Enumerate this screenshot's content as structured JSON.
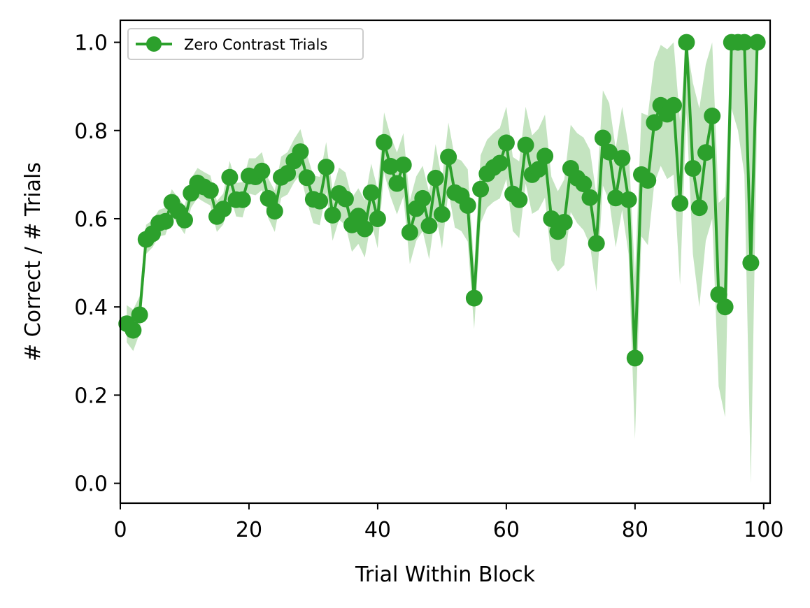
{
  "chart_data": {
    "type": "line",
    "title": "",
    "xlabel": "Trial Within Block",
    "ylabel": "# Correct / # Trials",
    "xlim": [
      0,
      101
    ],
    "ylim": [
      -0.045,
      1.05
    ],
    "x_ticks": [
      0,
      20,
      40,
      60,
      80,
      100
    ],
    "y_ticks": [
      0.0,
      0.2,
      0.4,
      0.6,
      0.8,
      1.0
    ],
    "x_tick_labels": [
      "0",
      "20",
      "40",
      "60",
      "80",
      "100"
    ],
    "y_tick_labels": [
      "0.0",
      "0.2",
      "0.4",
      "0.6",
      "0.8",
      "1.0"
    ],
    "grid": false,
    "legend_position": "top-left",
    "series": [
      {
        "name": "Zero Contrast Trials",
        "color": "#2ca02c",
        "band_color": "#c4e4c0",
        "marker": "circle",
        "x": [
          1,
          2,
          3,
          4,
          5,
          6,
          7,
          8,
          9,
          10,
          11,
          12,
          13,
          14,
          15,
          16,
          17,
          18,
          19,
          20,
          21,
          22,
          23,
          24,
          25,
          26,
          27,
          28,
          29,
          30,
          31,
          32,
          33,
          34,
          35,
          36,
          37,
          38,
          39,
          40,
          41,
          42,
          43,
          44,
          45,
          46,
          47,
          48,
          49,
          50,
          51,
          52,
          53,
          54,
          55,
          56,
          57,
          58,
          59,
          60,
          61,
          62,
          63,
          64,
          65,
          66,
          67,
          68,
          69,
          70,
          71,
          72,
          73,
          74,
          75,
          76,
          77,
          78,
          79,
          80,
          81,
          82,
          83,
          84,
          85,
          86,
          87,
          88,
          89,
          90,
          91,
          92,
          93,
          94,
          95,
          96,
          97,
          98,
          99
        ],
        "y": [
          0.362,
          0.347,
          0.382,
          0.553,
          0.566,
          0.59,
          0.594,
          0.637,
          0.617,
          0.597,
          0.658,
          0.681,
          0.672,
          0.664,
          0.605,
          0.622,
          0.694,
          0.643,
          0.643,
          0.697,
          0.695,
          0.708,
          0.646,
          0.617,
          0.694,
          0.703,
          0.731,
          0.752,
          0.693,
          0.644,
          0.64,
          0.717,
          0.608,
          0.657,
          0.645,
          0.586,
          0.606,
          0.577,
          0.659,
          0.6,
          0.773,
          0.719,
          0.68,
          0.722,
          0.569,
          0.623,
          0.646,
          0.584,
          0.692,
          0.61,
          0.74,
          0.659,
          0.652,
          0.63,
          0.42,
          0.667,
          0.702,
          0.716,
          0.726,
          0.772,
          0.656,
          0.643,
          0.767,
          0.7,
          0.712,
          0.742,
          0.6,
          0.571,
          0.592,
          0.714,
          0.692,
          0.679,
          0.648,
          0.544,
          0.783,
          0.751,
          0.647,
          0.737,
          0.643,
          0.284,
          0.7,
          0.687,
          0.818,
          0.857,
          0.837,
          0.857,
          0.635,
          1.0,
          0.714,
          0.625,
          0.75,
          0.833,
          0.428,
          0.4,
          1.0,
          1.0,
          1.0,
          0.5,
          1.0
        ],
        "lower": [
          0.32,
          0.3,
          0.34,
          0.52,
          0.535,
          0.56,
          0.563,
          0.607,
          0.587,
          0.565,
          0.625,
          0.647,
          0.638,
          0.63,
          0.57,
          0.587,
          0.657,
          0.605,
          0.603,
          0.657,
          0.653,
          0.665,
          0.601,
          0.57,
          0.647,
          0.655,
          0.682,
          0.701,
          0.64,
          0.59,
          0.585,
          0.66,
          0.55,
          0.598,
          0.585,
          0.525,
          0.543,
          0.512,
          0.593,
          0.533,
          0.705,
          0.65,
          0.61,
          0.65,
          0.497,
          0.55,
          0.572,
          0.508,
          0.615,
          0.532,
          0.662,
          0.58,
          0.572,
          0.548,
          0.35,
          0.59,
          0.625,
          0.638,
          0.646,
          0.69,
          0.572,
          0.556,
          0.68,
          0.611,
          0.62,
          0.648,
          0.505,
          0.48,
          0.495,
          0.615,
          0.59,
          0.574,
          0.54,
          0.435,
          0.675,
          0.64,
          0.535,
          0.62,
          0.52,
          0.1,
          0.56,
          0.54,
          0.68,
          0.72,
          0.69,
          0.7,
          0.45,
          0.84,
          0.52,
          0.4,
          0.55,
          0.6,
          0.22,
          0.15,
          0.85,
          0.8,
          0.7,
          0.0,
          0.85
        ],
        "upper": [
          0.404,
          0.394,
          0.424,
          0.586,
          0.597,
          0.62,
          0.625,
          0.667,
          0.647,
          0.629,
          0.691,
          0.715,
          0.706,
          0.698,
          0.64,
          0.657,
          0.731,
          0.681,
          0.683,
          0.737,
          0.737,
          0.751,
          0.691,
          0.664,
          0.741,
          0.751,
          0.78,
          0.803,
          0.746,
          0.698,
          0.695,
          0.774,
          0.666,
          0.716,
          0.705,
          0.647,
          0.669,
          0.642,
          0.725,
          0.667,
          0.841,
          0.788,
          0.75,
          0.794,
          0.641,
          0.696,
          0.72,
          0.66,
          0.769,
          0.688,
          0.818,
          0.738,
          0.732,
          0.712,
          0.49,
          0.744,
          0.779,
          0.794,
          0.806,
          0.854,
          0.74,
          0.73,
          0.854,
          0.789,
          0.804,
          0.836,
          0.695,
          0.662,
          0.689,
          0.813,
          0.794,
          0.784,
          0.756,
          0.653,
          0.891,
          0.862,
          0.759,
          0.854,
          0.766,
          0.468,
          0.84,
          0.834,
          0.956,
          0.994,
          0.984,
          1.0,
          0.82,
          1.0,
          0.908,
          0.85,
          0.95,
          1.0,
          0.636,
          0.65,
          1.0,
          1.0,
          1.0,
          1.0,
          1.0
        ]
      }
    ]
  }
}
